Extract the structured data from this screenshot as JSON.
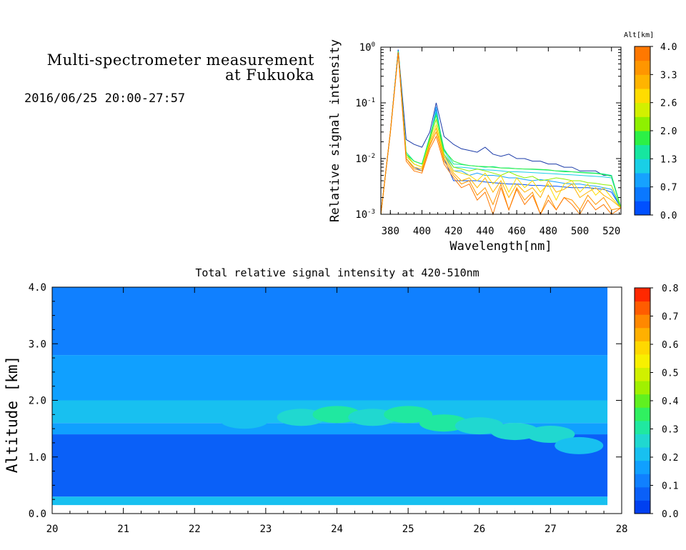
{
  "header": {
    "title_line1": "Multi-spectrometer measurement",
    "title_line2": "at Fukuoka",
    "datetime": "2016/06/25 20:00-27:57"
  },
  "chart_data": [
    {
      "type": "line",
      "xlabel": "Wavelength[nm]",
      "ylabel": "Relative signal intensity",
      "xlim": [
        374,
        526
      ],
      "ylim": [
        0.001,
        1
      ],
      "y_scale": "log",
      "x_ticks": [
        380,
        400,
        420,
        440,
        460,
        480,
        500,
        520
      ],
      "y_ticks": [
        {
          "value": 1,
          "mant": "10",
          "exp": "0"
        },
        {
          "value": 0.1,
          "mant": "10",
          "exp": "-1"
        },
        {
          "value": 0.01,
          "mant": "10",
          "exp": "-2"
        },
        {
          "value": 0.001,
          "mant": "10",
          "exp": "-3"
        }
      ],
      "colorbar": {
        "label": "Alt[km]",
        "tick_labels": [
          "4.0",
          "3.3",
          "2.6",
          "2.0",
          "1.3",
          "0.7",
          "0.0"
        ],
        "colors": [
          "#0050ff",
          "#0a78ff",
          "#16a2ff",
          "#19cfe6",
          "#16e6a0",
          "#2cf046",
          "#8ef000",
          "#d2f000",
          "#ffdc00",
          "#ffb400",
          "#ff9600",
          "#ff7800"
        ]
      },
      "x": [
        374,
        380,
        385,
        390,
        395,
        400,
        405,
        409,
        414,
        420,
        425,
        430,
        435,
        440,
        445,
        450,
        455,
        460,
        465,
        470,
        475,
        480,
        485,
        490,
        495,
        500,
        505,
        510,
        515,
        520,
        526
      ],
      "series": [
        {
          "color": "#1a3aa8",
          "values": [
            0.001,
            0.03,
            0.9,
            0.022,
            0.018,
            0.016,
            0.03,
            0.1,
            0.025,
            0.018,
            0.015,
            0.014,
            0.013,
            0.016,
            0.012,
            0.011,
            0.012,
            0.01,
            0.01,
            0.009,
            0.009,
            0.008,
            0.008,
            0.007,
            0.007,
            0.006,
            0.006,
            0.006,
            0.005,
            0.005,
            0.0013
          ]
        },
        {
          "color": "#0050ff",
          "values": [
            0.001,
            0.03,
            0.9,
            0.01,
            0.007,
            0.006,
            0.02,
            0.08,
            0.01,
            0.004,
            0.004,
            0.004,
            0.004,
            0.0038,
            0.0037,
            0.0036,
            0.0035,
            0.0035,
            0.0034,
            0.0033,
            0.0033,
            0.0032,
            0.0032,
            0.0031,
            0.003,
            0.003,
            0.003,
            0.0029,
            0.0028,
            0.0025,
            0.0013
          ]
        },
        {
          "color": "#16a2ff",
          "values": [
            0.001,
            0.03,
            0.85,
            0.011,
            0.008,
            0.007,
            0.022,
            0.085,
            0.012,
            0.006,
            0.006,
            0.005,
            0.0055,
            0.005,
            0.005,
            0.0048,
            0.0045,
            0.0045,
            0.0042,
            0.004,
            0.0042,
            0.004,
            0.0038,
            0.0036,
            0.0035,
            0.0035,
            0.0033,
            0.0032,
            0.003,
            0.0028,
            0.0013
          ]
        },
        {
          "color": "#19cfe6",
          "values": [
            0.001,
            0.03,
            0.85,
            0.012,
            0.009,
            0.008,
            0.025,
            0.07,
            0.014,
            0.007,
            0.007,
            0.0068,
            0.0065,
            0.0063,
            0.0062,
            0.006,
            0.0058,
            0.0058,
            0.0057,
            0.0056,
            0.0055,
            0.0054,
            0.0053,
            0.0052,
            0.0051,
            0.005,
            0.0049,
            0.0048,
            0.0047,
            0.0045,
            0.0013
          ]
        },
        {
          "color": "#16e6a0",
          "values": [
            0.001,
            0.03,
            0.85,
            0.013,
            0.009,
            0.008,
            0.025,
            0.065,
            0.015,
            0.008,
            0.0078,
            0.0075,
            0.0073,
            0.007,
            0.0072,
            0.0068,
            0.0068,
            0.0066,
            0.0065,
            0.0064,
            0.0063,
            0.0062,
            0.006,
            0.006,
            0.0058,
            0.0057,
            0.0056,
            0.0055,
            0.0053,
            0.005,
            0.0013
          ]
        },
        {
          "color": "#2cf046",
          "values": [
            0.001,
            0.03,
            0.85,
            0.012,
            0.009,
            0.008,
            0.024,
            0.06,
            0.014,
            0.009,
            0.008,
            0.0075,
            0.0073,
            0.0072,
            0.007,
            0.0068,
            0.0067,
            0.0066,
            0.0065,
            0.0065,
            0.0064,
            0.0063,
            0.006,
            0.0058,
            0.0058,
            0.0056,
            0.0055,
            0.0054,
            0.0052,
            0.0048,
            0.0013
          ]
        },
        {
          "color": "#8ef000",
          "values": [
            0.001,
            0.03,
            0.8,
            0.012,
            0.008,
            0.007,
            0.022,
            0.05,
            0.012,
            0.007,
            0.0065,
            0.006,
            0.0065,
            0.006,
            0.0055,
            0.005,
            0.0058,
            0.005,
            0.0045,
            0.0048,
            0.004,
            0.0042,
            0.0045,
            0.0043,
            0.004,
            0.004,
            0.0037,
            0.0036,
            0.0034,
            0.0033,
            0.0013
          ]
        },
        {
          "color": "#ffdc00",
          "values": [
            0.001,
            0.03,
            0.8,
            0.011,
            0.008,
            0.007,
            0.02,
            0.04,
            0.011,
            0.006,
            0.0055,
            0.005,
            0.004,
            0.0055,
            0.0035,
            0.005,
            0.0025,
            0.0045,
            0.003,
            0.004,
            0.0025,
            0.0035,
            0.0018,
            0.0035,
            0.004,
            0.0025,
            0.0035,
            0.0022,
            0.003,
            0.002,
            0.0013
          ]
        },
        {
          "color": "#ffb400",
          "values": [
            0.001,
            0.03,
            0.8,
            0.01,
            0.007,
            0.0065,
            0.018,
            0.035,
            0.01,
            0.0055,
            0.004,
            0.0045,
            0.003,
            0.0045,
            0.0025,
            0.004,
            0.002,
            0.0035,
            0.0025,
            0.003,
            0.002,
            0.004,
            0.0025,
            0.0028,
            0.0035,
            0.002,
            0.0025,
            0.003,
            0.0022,
            0.0018,
            0.0013
          ]
        },
        {
          "color": "#ff9600",
          "values": [
            0.001,
            0.03,
            0.8,
            0.01,
            0.0065,
            0.006,
            0.017,
            0.03,
            0.009,
            0.005,
            0.0035,
            0.004,
            0.0022,
            0.003,
            0.0015,
            0.0035,
            0.0012,
            0.003,
            0.0018,
            0.0025,
            0.001,
            0.0022,
            0.0012,
            0.002,
            0.0018,
            0.0012,
            0.0022,
            0.0015,
            0.002,
            0.0012,
            0.0013
          ]
        },
        {
          "color": "#ff7800",
          "values": [
            0.001,
            0.03,
            0.8,
            0.009,
            0.006,
            0.0055,
            0.015,
            0.025,
            0.008,
            0.0045,
            0.003,
            0.0035,
            0.0018,
            0.0025,
            0.001,
            0.003,
            0.0012,
            0.0028,
            0.0015,
            0.0022,
            0.001,
            0.0018,
            0.0012,
            0.002,
            0.0015,
            0.001,
            0.0018,
            0.0012,
            0.0015,
            0.001,
            0.0013
          ]
        }
      ]
    },
    {
      "type": "heatmap",
      "title": "Total relative signal intensity at 420-510nm",
      "ylabel": "Altitude [km]",
      "xlim": [
        20,
        28
      ],
      "ylim": [
        0,
        4
      ],
      "x_tick_labels": [
        "20",
        "21",
        "22",
        "23",
        "24",
        "25",
        "26",
        "27",
        "28"
      ],
      "y_tick_labels": [
        "0.0",
        "1.0",
        "2.0",
        "3.0",
        "4.0"
      ],
      "data_extent_x": [
        20,
        27.8
      ],
      "data_extent_y": [
        0.15,
        4.0
      ],
      "colorbar": {
        "tick_labels": [
          "0.8",
          "0.7",
          "0.6",
          "0.5",
          "0.4",
          "0.3",
          "0.2",
          "0.1",
          "0.0"
        ],
        "colors": [
          "#0040f0",
          "#0a60f8",
          "#1080ff",
          "#10a0ff",
          "#18c0f0",
          "#20d8d0",
          "#20e8a0",
          "#30f060",
          "#60f020",
          "#a0f000",
          "#d0f000",
          "#f8f000",
          "#ffd800",
          "#ffb000",
          "#ff8800",
          "#ff5c00",
          "#ff2800"
        ]
      },
      "bands": [
        {
          "y0": 0.15,
          "y1": 0.3,
          "value": 0.19
        },
        {
          "y0": 0.3,
          "y1": 1.4,
          "value": 0.09
        },
        {
          "y0": 1.4,
          "y1": 1.6,
          "value": 0.15
        },
        {
          "y0": 1.6,
          "y1": 2.0,
          "value": 0.2
        },
        {
          "y0": 2.0,
          "y1": 2.8,
          "value": 0.16
        },
        {
          "y0": 2.8,
          "y1": 4.0,
          "value": 0.13
        }
      ],
      "layer": [
        {
          "t": 22.7,
          "alt": 1.65,
          "value": 0.22
        },
        {
          "t": 23.5,
          "alt": 1.7,
          "value": 0.27
        },
        {
          "t": 24.0,
          "alt": 1.75,
          "value": 0.3
        },
        {
          "t": 24.5,
          "alt": 1.7,
          "value": 0.27
        },
        {
          "t": 25.0,
          "alt": 1.75,
          "value": 0.3
        },
        {
          "t": 25.5,
          "alt": 1.6,
          "value": 0.3
        },
        {
          "t": 26.0,
          "alt": 1.55,
          "value": 0.28
        },
        {
          "t": 26.5,
          "alt": 1.45,
          "value": 0.28
        },
        {
          "t": 27.0,
          "alt": 1.4,
          "value": 0.28
        },
        {
          "t": 27.4,
          "alt": 1.2,
          "value": 0.22
        }
      ]
    }
  ]
}
